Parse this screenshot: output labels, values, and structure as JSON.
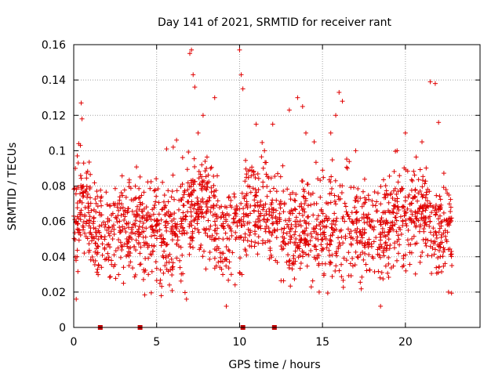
{
  "chart_data": {
    "type": "scatter",
    "title": "Day 141 of 2021, SRMTID for receiver rant",
    "xlabel": "GPS time / hours",
    "ylabel": "SRMTID / TECUs",
    "xlim": [
      0,
      24.5
    ],
    "ylim": [
      0,
      0.16
    ],
    "xticks": [
      0,
      5,
      10,
      15,
      20
    ],
    "xtick_labels": [
      "0",
      "5",
      "10",
      "15",
      "20"
    ],
    "yticks": [
      0,
      0.02,
      0.04,
      0.06,
      0.08,
      0.1,
      0.12,
      0.14,
      0.16
    ],
    "ytick_labels": [
      "0",
      "0.02",
      "0.04",
      "0.06",
      "0.08",
      "0.1",
      "0.12",
      "0.14",
      "0.16"
    ],
    "grid": true,
    "marker": "+",
    "color": "#e00000",
    "series": [
      {
        "name": "SRMTID",
        "description": "dense cloud of points, approx 0.015-0.157 TECU, mean ~0.055",
        "points": [
          [
            0.1,
            0.09
          ],
          [
            0.15,
            0.016
          ],
          [
            0.2,
            0.04
          ],
          [
            0.3,
            0.104
          ],
          [
            0.4,
            0.103
          ],
          [
            0.45,
            0.127
          ],
          [
            0.5,
            0.118
          ],
          [
            0.6,
            0.093
          ],
          [
            1.2,
            0.06
          ],
          [
            1.5,
            0.035
          ],
          [
            2.0,
            0.055
          ],
          [
            2.5,
            0.07
          ],
          [
            3.0,
            0.025
          ],
          [
            3.5,
            0.05
          ],
          [
            4.0,
            0.06
          ],
          [
            4.5,
            0.03
          ],
          [
            5.0,
            0.06
          ],
          [
            5.5,
            0.035
          ],
          [
            5.6,
            0.101
          ],
          [
            6.0,
            0.102
          ],
          [
            6.2,
            0.106
          ],
          [
            6.5,
            0.06
          ],
          [
            6.8,
            0.016
          ],
          [
            7.0,
            0.155
          ],
          [
            7.1,
            0.157
          ],
          [
            7.2,
            0.143
          ],
          [
            7.3,
            0.136
          ],
          [
            7.5,
            0.11
          ],
          [
            7.8,
            0.12
          ],
          [
            8.0,
            0.09
          ],
          [
            8.5,
            0.13
          ],
          [
            9.0,
            0.05
          ],
          [
            9.2,
            0.012
          ],
          [
            9.5,
            0.03
          ],
          [
            10.0,
            0.157
          ],
          [
            10.1,
            0.143
          ],
          [
            10.2,
            0.135
          ],
          [
            10.5,
            0.08
          ],
          [
            11.0,
            0.115
          ],
          [
            11.5,
            0.1
          ],
          [
            12.0,
            0.115
          ],
          [
            12.5,
            0.07
          ],
          [
            13.0,
            0.123
          ],
          [
            13.5,
            0.13
          ],
          [
            13.8,
            0.125
          ],
          [
            14.0,
            0.11
          ],
          [
            14.5,
            0.105
          ],
          [
            14.8,
            0.02
          ],
          [
            15.0,
            0.05
          ],
          [
            15.5,
            0.11
          ],
          [
            15.8,
            0.12
          ],
          [
            16.0,
            0.133
          ],
          [
            16.2,
            0.128
          ],
          [
            16.5,
            0.09
          ],
          [
            17.0,
            0.1
          ],
          [
            17.5,
            0.07
          ],
          [
            18.0,
            0.04
          ],
          [
            18.5,
            0.012
          ],
          [
            19.0,
            0.05
          ],
          [
            19.5,
            0.1
          ],
          [
            20.0,
            0.11
          ],
          [
            20.5,
            0.06
          ],
          [
            21.0,
            0.105
          ],
          [
            21.5,
            0.139
          ],
          [
            21.8,
            0.138
          ],
          [
            22.0,
            0.116
          ],
          [
            22.3,
            0.045
          ],
          [
            22.6,
            0.02
          ],
          [
            22.8,
            0.035
          ]
        ]
      }
    ],
    "axis_markers_x": [
      1.6,
      4.0,
      10.2,
      12.1
    ]
  }
}
